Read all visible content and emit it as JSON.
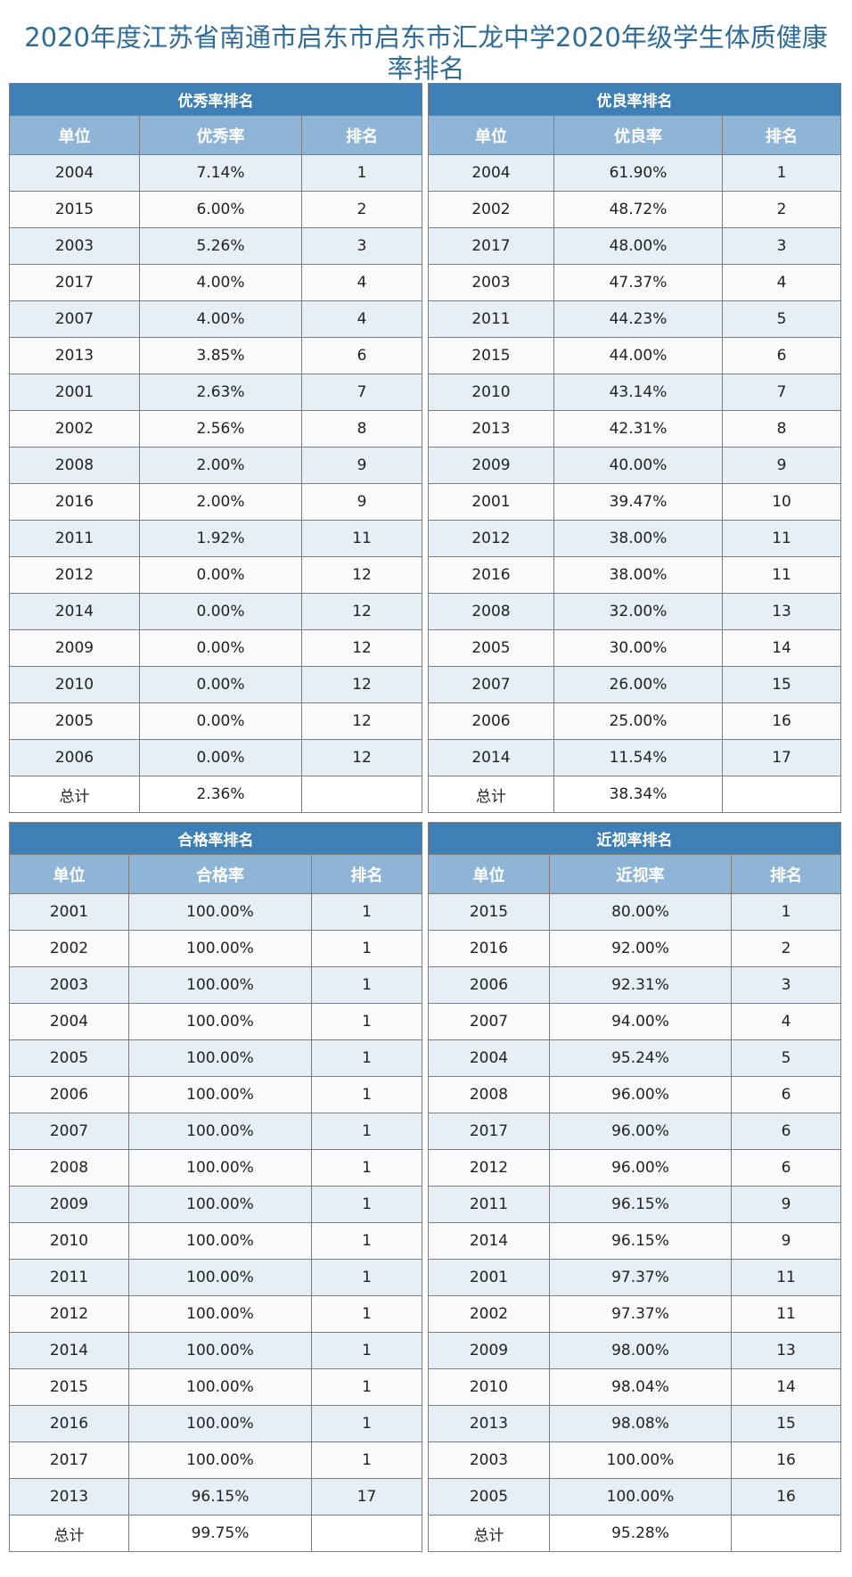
{
  "title": {
    "line1": "2020年度江苏省南通市启东市启东市汇龙中学2020年级学生体质健康",
    "line2": "率排名"
  },
  "tables": [
    {
      "caption": "优秀率排名",
      "headers": [
        "单位",
        "优秀率",
        "排名"
      ],
      "rows": [
        [
          "2004",
          "7.14%",
          "1"
        ],
        [
          "2015",
          "6.00%",
          "2"
        ],
        [
          "2003",
          "5.26%",
          "3"
        ],
        [
          "2017",
          "4.00%",
          "4"
        ],
        [
          "2007",
          "4.00%",
          "4"
        ],
        [
          "2013",
          "3.85%",
          "6"
        ],
        [
          "2001",
          "2.63%",
          "7"
        ],
        [
          "2002",
          "2.56%",
          "8"
        ],
        [
          "2008",
          "2.00%",
          "9"
        ],
        [
          "2016",
          "2.00%",
          "9"
        ],
        [
          "2011",
          "1.92%",
          "11"
        ],
        [
          "2012",
          "0.00%",
          "12"
        ],
        [
          "2014",
          "0.00%",
          "12"
        ],
        [
          "2009",
          "0.00%",
          "12"
        ],
        [
          "2010",
          "0.00%",
          "12"
        ],
        [
          "2005",
          "0.00%",
          "12"
        ],
        [
          "2006",
          "0.00%",
          "12"
        ]
      ],
      "total": [
        "总计",
        "2.36%",
        ""
      ]
    },
    {
      "caption": "优良率排名",
      "headers": [
        "单位",
        "优良率",
        "排名"
      ],
      "rows": [
        [
          "2004",
          "61.90%",
          "1"
        ],
        [
          "2002",
          "48.72%",
          "2"
        ],
        [
          "2017",
          "48.00%",
          "3"
        ],
        [
          "2003",
          "47.37%",
          "4"
        ],
        [
          "2011",
          "44.23%",
          "5"
        ],
        [
          "2015",
          "44.00%",
          "6"
        ],
        [
          "2010",
          "43.14%",
          "7"
        ],
        [
          "2013",
          "42.31%",
          "8"
        ],
        [
          "2009",
          "40.00%",
          "9"
        ],
        [
          "2001",
          "39.47%",
          "10"
        ],
        [
          "2012",
          "38.00%",
          "11"
        ],
        [
          "2016",
          "38.00%",
          "11"
        ],
        [
          "2008",
          "32.00%",
          "13"
        ],
        [
          "2005",
          "30.00%",
          "14"
        ],
        [
          "2007",
          "26.00%",
          "15"
        ],
        [
          "2006",
          "25.00%",
          "16"
        ],
        [
          "2014",
          "11.54%",
          "17"
        ]
      ],
      "total": [
        "总计",
        "38.34%",
        ""
      ]
    },
    {
      "caption": "合格率排名",
      "headers": [
        "单位",
        "合格率",
        "排名"
      ],
      "rows": [
        [
          "2001",
          "100.00%",
          "1"
        ],
        [
          "2002",
          "100.00%",
          "1"
        ],
        [
          "2003",
          "100.00%",
          "1"
        ],
        [
          "2004",
          "100.00%",
          "1"
        ],
        [
          "2005",
          "100.00%",
          "1"
        ],
        [
          "2006",
          "100.00%",
          "1"
        ],
        [
          "2007",
          "100.00%",
          "1"
        ],
        [
          "2008",
          "100.00%",
          "1"
        ],
        [
          "2009",
          "100.00%",
          "1"
        ],
        [
          "2010",
          "100.00%",
          "1"
        ],
        [
          "2011",
          "100.00%",
          "1"
        ],
        [
          "2012",
          "100.00%",
          "1"
        ],
        [
          "2014",
          "100.00%",
          "1"
        ],
        [
          "2015",
          "100.00%",
          "1"
        ],
        [
          "2016",
          "100.00%",
          "1"
        ],
        [
          "2017",
          "100.00%",
          "1"
        ],
        [
          "2013",
          "96.15%",
          "17"
        ]
      ],
      "total": [
        "总计",
        "99.75%",
        ""
      ]
    },
    {
      "caption": "近视率排名",
      "headers": [
        "单位",
        "近视率",
        "排名"
      ],
      "rows": [
        [
          "2015",
          "80.00%",
          "1"
        ],
        [
          "2016",
          "92.00%",
          "2"
        ],
        [
          "2006",
          "92.31%",
          "3"
        ],
        [
          "2007",
          "94.00%",
          "4"
        ],
        [
          "2004",
          "95.24%",
          "5"
        ],
        [
          "2008",
          "96.00%",
          "6"
        ],
        [
          "2017",
          "96.00%",
          "6"
        ],
        [
          "2012",
          "96.00%",
          "6"
        ],
        [
          "2011",
          "96.15%",
          "9"
        ],
        [
          "2014",
          "96.15%",
          "9"
        ],
        [
          "2001",
          "97.37%",
          "11"
        ],
        [
          "2002",
          "97.37%",
          "11"
        ],
        [
          "2009",
          "98.00%",
          "13"
        ],
        [
          "2010",
          "98.04%",
          "14"
        ],
        [
          "2013",
          "98.08%",
          "15"
        ],
        [
          "2003",
          "100.00%",
          "16"
        ],
        [
          "2005",
          "100.00%",
          "16"
        ]
      ],
      "total": [
        "总计",
        "95.28%",
        ""
      ]
    }
  ]
}
